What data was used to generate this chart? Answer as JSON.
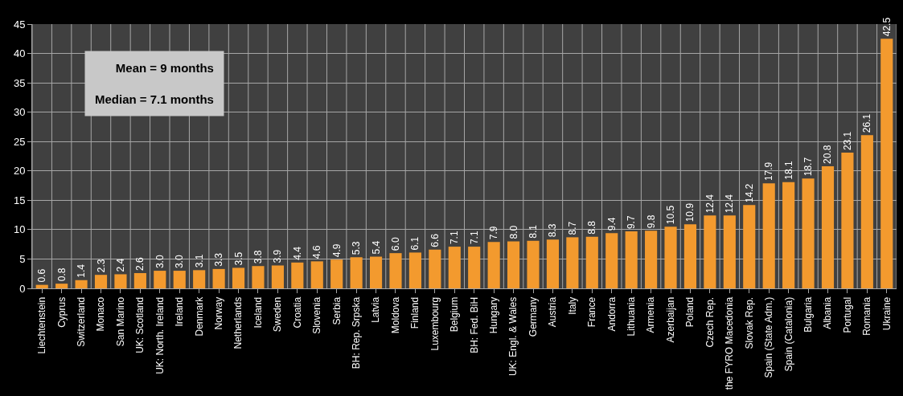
{
  "chart_data": {
    "type": "bar",
    "categories": [
      "Liechtenstein",
      "Cyprus",
      "Switzerland",
      "Monaco",
      "San Marino",
      "UK: Scotland",
      "UK: North. Ireland",
      "Ireland",
      "Denmark",
      "Norway",
      "Netherlands",
      "Iceland",
      "Sweden",
      "Croatia",
      "Slovenia",
      "Serbia",
      "BH: Rep. Srpska",
      "Latvia",
      "Moldova",
      "Finland",
      "Luxembourg",
      "Belgium",
      "BH: Fed. BiH",
      "Hungary",
      "UK: Engl. & Wales",
      "Germany",
      "Austria",
      "Italy",
      "France",
      "Andorra",
      "Lithuania",
      "Armenia",
      "Azerbaijan",
      "Poland",
      "Czech Rep.",
      "the FYRO Macedonia",
      "Slovak Rep.",
      "Spain (State Adm.)",
      "Spain (Catalonia)",
      "Bulgaria",
      "Albania",
      "Portugal",
      "Romania",
      "Ukraine"
    ],
    "values": [
      0.6,
      0.8,
      1.4,
      2.3,
      2.4,
      2.6,
      3.0,
      3.0,
      3.1,
      3.3,
      3.5,
      3.8,
      3.9,
      4.4,
      4.6,
      4.9,
      5.3,
      5.4,
      6.0,
      6.1,
      6.6,
      7.1,
      7.1,
      7.9,
      8.0,
      8.1,
      8.3,
      8.7,
      8.8,
      9.4,
      9.7,
      9.8,
      10.5,
      10.9,
      12.4,
      12.4,
      14.2,
      17.9,
      18.1,
      18.7,
      20.8,
      23.1,
      26.1,
      42.5
    ],
    "value_labels": [
      "0.6",
      "0.8",
      "1.4",
      "2.3",
      "2.4",
      "2.6",
      "3.0",
      "3.0",
      "3.1",
      "3.3",
      "3.5",
      "3.8",
      "3.9",
      "4.4",
      "4.6",
      "4.9",
      "5.3",
      "5.4",
      "6.0",
      "6.1",
      "6.6",
      "7.1",
      "7.1",
      "7.9",
      "8.0",
      "8.1",
      "8.3",
      "8.7",
      "8.8",
      "9.4",
      "9.7",
      "9.8",
      "10.5",
      "10.9",
      "12.4",
      "12.4",
      "14.2",
      "17.9",
      "18.1",
      "18.7",
      "20.8",
      "23.1",
      "26.1",
      "42.5"
    ],
    "color": "#f39a2e",
    "ylim": [
      0,
      45
    ],
    "yticks": [
      0,
      5,
      10,
      15,
      20,
      25,
      30,
      35,
      40,
      45
    ],
    "grid": true,
    "annotations": [
      "Mean = 9 months",
      "Median = 7.1 months"
    ]
  }
}
